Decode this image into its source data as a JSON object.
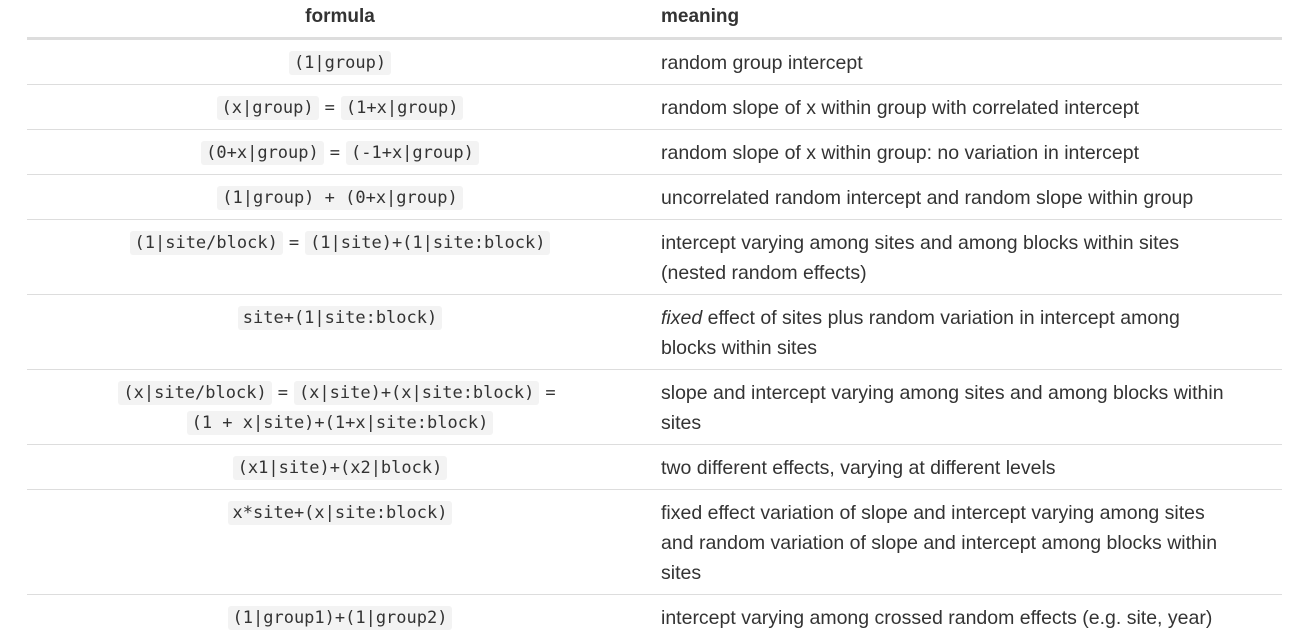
{
  "header": {
    "formula": "formula",
    "meaning": "meaning"
  },
  "rows": [
    {
      "formula_parts": [
        "(1|group)"
      ],
      "meaning": "random group intercept"
    },
    {
      "formula_parts": [
        "(x|group)",
        "=",
        "(1+x|group)"
      ],
      "meaning": "random slope of x within group with correlated intercept"
    },
    {
      "formula_parts": [
        "(0+x|group)",
        "=",
        "(-1+x|group)"
      ],
      "meaning": "random slope of x within group: no variation in intercept"
    },
    {
      "formula_parts": [
        "(1|group) + (0+x|group)"
      ],
      "meaning": "uncorrelated random intercept and random slope within group"
    },
    {
      "formula_parts": [
        "(1|site/block)",
        "=",
        "(1|site)+(1|site:block)"
      ],
      "meaning_lines": [
        "intercept varying among sites and among blocks within sites",
        "(nested random effects)"
      ]
    },
    {
      "formula_parts": [
        "site+(1|site:block)"
      ],
      "meaning_italic": "fixed",
      "meaning_rest_line1": " effect of sites plus random variation in intercept among",
      "meaning_line2": "blocks within sites"
    },
    {
      "formula_parts": [
        "(x|site/block)",
        "=",
        "(x|site)+(x|site:block)",
        "=",
        "(1 + x|site)+(1+x|site:block)"
      ],
      "meaning_lines": [
        "slope and intercept varying among sites and among blocks within",
        "sites"
      ]
    },
    {
      "formula_parts": [
        "(x1|site)+(x2|block)"
      ],
      "meaning": "two different effects, varying at different levels"
    },
    {
      "formula_parts": [
        "x*site+(x|site:block)"
      ],
      "meaning_lines": [
        "fixed effect variation of slope and intercept varying among sites",
        "and random variation of slope and intercept among blocks within",
        "sites"
      ]
    },
    {
      "formula_parts": [
        "(1|group1)+(1|group2)"
      ],
      "meaning": "intercept varying among crossed random effects (e.g. site, year)"
    }
  ]
}
